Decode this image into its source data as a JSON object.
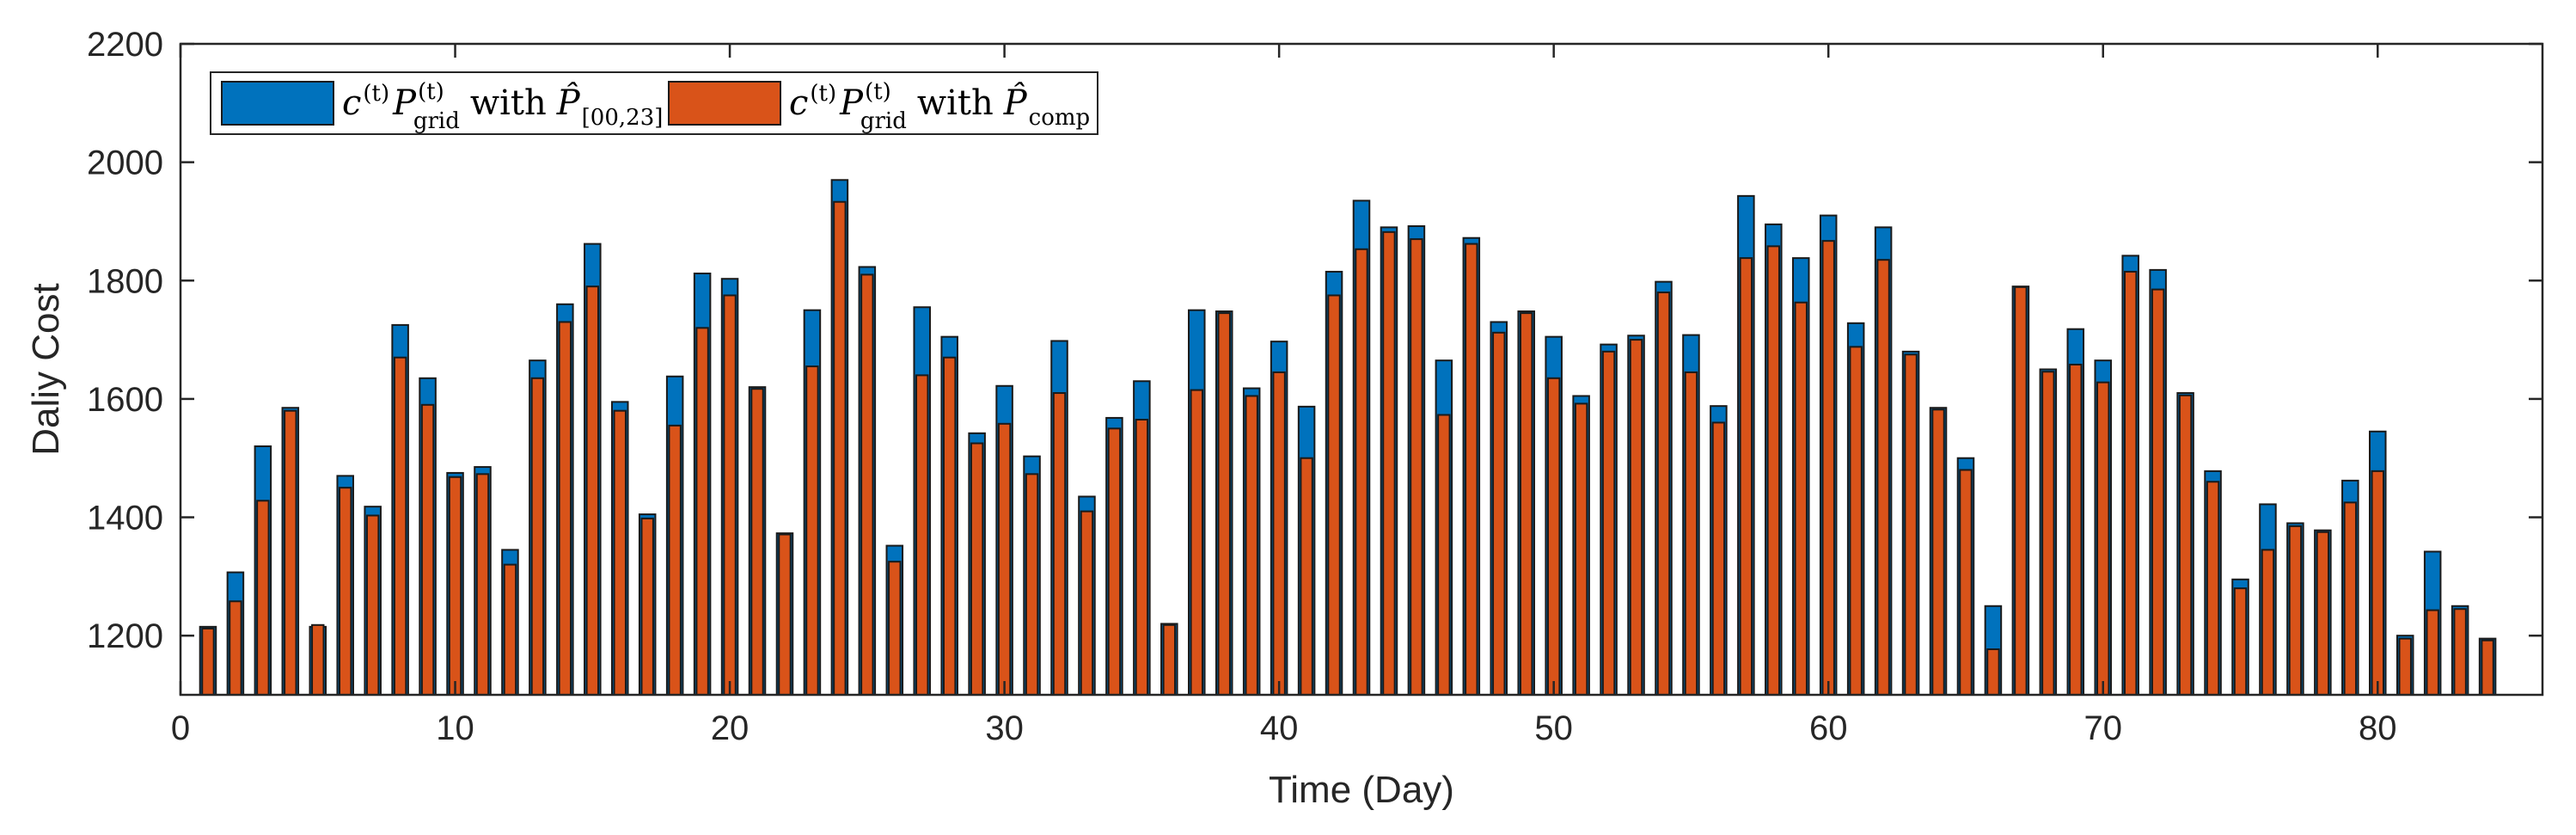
{
  "chart_data": {
    "type": "bar",
    "title": "",
    "xlabel": "Time (Day)",
    "ylabel": "Daliy Cost",
    "xlim": [
      0,
      86
    ],
    "ylim": [
      1100,
      2200
    ],
    "x_ticks": [
      0,
      10,
      20,
      30,
      40,
      50,
      60,
      70,
      80
    ],
    "y_ticks": [
      1200,
      1400,
      1600,
      1800,
      2000,
      2200
    ],
    "grid": false,
    "legend_position": "top-left",
    "colors": {
      "series_1": "#0072BD",
      "series_2": "#D95319",
      "axis": "#262626",
      "bar_edge": "#1a1a1a"
    },
    "x": [
      1,
      2,
      3,
      4,
      5,
      6,
      7,
      8,
      9,
      10,
      11,
      12,
      13,
      14,
      15,
      16,
      17,
      18,
      19,
      20,
      21,
      22,
      23,
      24,
      25,
      26,
      27,
      28,
      29,
      30,
      31,
      32,
      33,
      34,
      35,
      36,
      37,
      38,
      39,
      40,
      41,
      42,
      43,
      44,
      45,
      46,
      47,
      48,
      49,
      50,
      51,
      52,
      53,
      54,
      55,
      56,
      57,
      58,
      59,
      60,
      61,
      62,
      63,
      64,
      65,
      66,
      67,
      68,
      69,
      70,
      71,
      72,
      73,
      74,
      75,
      76,
      77,
      78,
      79,
      80,
      81,
      82,
      83,
      84
    ],
    "series": [
      {
        "name": "c(t) P_grid(t) with P̂_[00,23]",
        "legend": {
          "main": "c",
          "sup1": "(t)",
          "mid": "P",
          "sup2": "(t)",
          "sub2": "grid",
          "with": "with",
          "hat_var": "P̂",
          "hat_sub": "[00,23]"
        },
        "values": [
          1215,
          1307,
          1520,
          1585,
          1215,
          1470,
          1418,
          1725,
          1635,
          1475,
          1485,
          1345,
          1665,
          1760,
          1862,
          1595,
          1405,
          1638,
          1812,
          1803,
          1620,
          1373,
          1750,
          1970,
          1823,
          1352,
          1755,
          1705,
          1542,
          1622,
          1503,
          1698,
          1435,
          1568,
          1630,
          1220,
          1750,
          1748,
          1618,
          1697,
          1587,
          1815,
          1935,
          1890,
          1892,
          1665,
          1872,
          1730,
          1748,
          1705,
          1605,
          1692,
          1707,
          1798,
          1708,
          1588,
          1943,
          1895,
          1838,
          1910,
          1728,
          1890,
          1680,
          1585,
          1500,
          1250,
          1790,
          1650,
          1718,
          1665,
          1842,
          1818,
          1610,
          1478,
          1295,
          1422,
          1390,
          1378,
          1462,
          1545,
          1200,
          1342,
          1250,
          1195
        ]
      },
      {
        "name": "c(t) P_grid(t) with P̂_comp",
        "legend": {
          "main": "c",
          "sup1": "(t)",
          "mid": "P",
          "sup2": "(t)",
          "sub2": "grid",
          "with": "with",
          "hat_var": "P̂",
          "hat_sub": "comp"
        },
        "values": [
          1212,
          1258,
          1428,
          1580,
          1218,
          1450,
          1403,
          1670,
          1590,
          1468,
          1473,
          1320,
          1635,
          1730,
          1790,
          1580,
          1398,
          1555,
          1720,
          1775,
          1617,
          1371,
          1655,
          1933,
          1810,
          1325,
          1640,
          1670,
          1525,
          1558,
          1473,
          1610,
          1410,
          1550,
          1565,
          1218,
          1615,
          1745,
          1605,
          1645,
          1500,
          1775,
          1853,
          1882,
          1870,
          1573,
          1862,
          1712,
          1745,
          1635,
          1592,
          1680,
          1700,
          1780,
          1645,
          1560,
          1838,
          1858,
          1763,
          1867,
          1688,
          1835,
          1675,
          1582,
          1480,
          1177,
          1789,
          1646,
          1658,
          1628,
          1815,
          1785,
          1606,
          1460,
          1280,
          1345,
          1385,
          1375,
          1425,
          1478,
          1195,
          1243,
          1245,
          1192
        ]
      }
    ]
  }
}
